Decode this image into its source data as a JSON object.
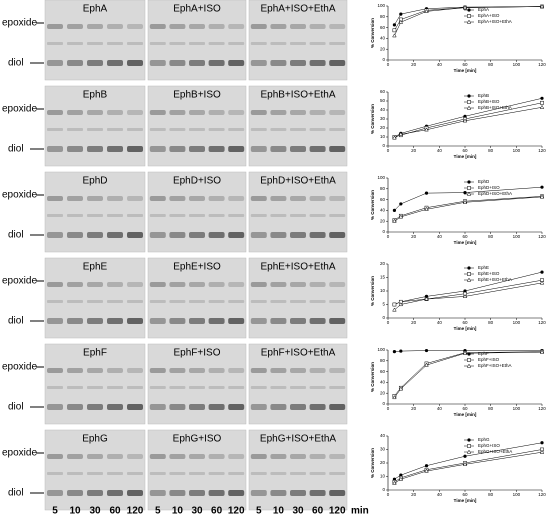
{
  "gels": {
    "rows": [
      {
        "panels": [
          "EphA",
          "EphA+ISO",
          "EphA+ISO+EthA"
        ],
        "side_labels": [
          "epoxide",
          "diol"
        ]
      },
      {
        "panels": [
          "EphB",
          "EphB+ISO",
          "EphB+ISO+EthA"
        ],
        "side_labels": [
          "epoxide",
          "diol"
        ]
      },
      {
        "panels": [
          "EphD",
          "EphD+ISO",
          "EphD+ISO+EthA"
        ],
        "side_labels": [
          "epoxide",
          "diol"
        ]
      },
      {
        "panels": [
          "EphE",
          "EphE+ISO",
          "EphE+ISO+EthA"
        ],
        "side_labels": [
          "epoxide",
          "diol"
        ]
      },
      {
        "panels": [
          "EphF",
          "EphF+ISO",
          "EphF+ISO+EthA"
        ],
        "side_labels": [
          "epoxide",
          "diol"
        ]
      },
      {
        "panels": [
          "EphG",
          "EphG+ISO",
          "EphG+ISO+EthA"
        ],
        "side_labels": [
          "epoxide",
          "diol"
        ]
      }
    ],
    "lanes": [
      "5",
      "10",
      "30",
      "60",
      "120"
    ],
    "lane_unit": "min"
  },
  "chart_data": [
    {
      "type": "line",
      "x_label": "Time [min]",
      "y_label": "% Conversion",
      "x": [
        5,
        10,
        30,
        60,
        120
      ],
      "xlim": [
        0,
        120
      ],
      "xticks": [
        0,
        20,
        40,
        60,
        80,
        100,
        120
      ],
      "ylim": [
        0,
        100
      ],
      "yticks": [
        0,
        20,
        40,
        60,
        80,
        100
      ],
      "series": [
        {
          "name": "EphA",
          "color": "#000000",
          "marker": "circle",
          "values": [
            65,
            85,
            95,
            98,
            99
          ]
        },
        {
          "name": "EphA+ISO",
          "color": "#000000",
          "marker": "square",
          "values": [
            55,
            75,
            92,
            97,
            99
          ]
        },
        {
          "name": "EphA+ISO+EthA",
          "color": "#000000",
          "marker": "triangle",
          "values": [
            45,
            70,
            90,
            97,
            99
          ]
        }
      ]
    },
    {
      "type": "line",
      "x_label": "Time [min]",
      "y_label": "% Conversion",
      "x": [
        5,
        10,
        30,
        60,
        120
      ],
      "xlim": [
        0,
        120
      ],
      "xticks": [
        0,
        20,
        40,
        60,
        80,
        100,
        120
      ],
      "ylim": [
        0,
        60
      ],
      "yticks": [
        0,
        10,
        20,
        30,
        40,
        50,
        60
      ],
      "series": [
        {
          "name": "EphB",
          "color": "#000000",
          "marker": "circle",
          "values": [
            10,
            14,
            22,
            33,
            53
          ]
        },
        {
          "name": "EphB+ISO",
          "color": "#000000",
          "marker": "square",
          "values": [
            10,
            12,
            20,
            30,
            48
          ]
        },
        {
          "name": "EphB+ISO+EthA",
          "color": "#000000",
          "marker": "triangle",
          "values": [
            9,
            13,
            18,
            28,
            43
          ]
        }
      ]
    },
    {
      "type": "line",
      "x_label": "Time [min]",
      "y_label": "% Conversion",
      "x": [
        5,
        10,
        30,
        60,
        120
      ],
      "xlim": [
        0,
        120
      ],
      "xticks": [
        0,
        20,
        40,
        60,
        80,
        100,
        120
      ],
      "ylim": [
        0,
        100
      ],
      "yticks": [
        0,
        20,
        40,
        60,
        80,
        100
      ],
      "series": [
        {
          "name": "EphD",
          "color": "#000000",
          "marker": "circle",
          "values": [
            40,
            52,
            72,
            73,
            83
          ]
        },
        {
          "name": "EphD+ISO",
          "color": "#000000",
          "marker": "square",
          "values": [
            22,
            30,
            45,
            57,
            66
          ]
        },
        {
          "name": "EphD+ISO+EthA",
          "color": "#000000",
          "marker": "triangle",
          "values": [
            20,
            28,
            42,
            55,
            65
          ]
        }
      ]
    },
    {
      "type": "line",
      "x_label": "Time [min]",
      "y_label": "% Conversion",
      "x": [
        5,
        10,
        30,
        60,
        120
      ],
      "xlim": [
        0,
        120
      ],
      "xticks": [
        0,
        20,
        40,
        60,
        80,
        100,
        120
      ],
      "ylim": [
        0,
        20
      ],
      "yticks": [
        0,
        5,
        10,
        15,
        20
      ],
      "series": [
        {
          "name": "EphE",
          "color": "#000000",
          "marker": "circle",
          "values": [
            5,
            6,
            8,
            10,
            17
          ]
        },
        {
          "name": "EphE+ISO",
          "color": "#000000",
          "marker": "square",
          "values": [
            5,
            6,
            7,
            9,
            14
          ]
        },
        {
          "name": "EphE+ISO+EthA",
          "color": "#000000",
          "marker": "triangle",
          "values": [
            3,
            5,
            7,
            8,
            13
          ]
        }
      ]
    },
    {
      "type": "line",
      "x_label": "Time [min]",
      "y_label": "% Conversion",
      "x": [
        5,
        10,
        30,
        60,
        120
      ],
      "xlim": [
        0,
        120
      ],
      "xticks": [
        0,
        20,
        40,
        60,
        80,
        100,
        120
      ],
      "ylim": [
        0,
        100
      ],
      "yticks": [
        0,
        20,
        40,
        60,
        80,
        100
      ],
      "series": [
        {
          "name": "EphF",
          "color": "#000000",
          "marker": "circle",
          "values": [
            97,
            98,
            99,
            99,
            99
          ]
        },
        {
          "name": "EphF+ISO",
          "color": "#000000",
          "marker": "square",
          "values": [
            15,
            30,
            75,
            95,
            97
          ]
        },
        {
          "name": "EphF+ISO+EthA",
          "color": "#000000",
          "marker": "triangle",
          "values": [
            12,
            28,
            72,
            94,
            96
          ]
        }
      ]
    },
    {
      "type": "line",
      "x_label": "Time [min]",
      "y_label": "% Conversion",
      "x": [
        5,
        10,
        30,
        60,
        120
      ],
      "xlim": [
        0,
        120
      ],
      "xticks": [
        0,
        20,
        40,
        60,
        80,
        100,
        120
      ],
      "ylim": [
        0,
        40
      ],
      "yticks": [
        0,
        10,
        20,
        30,
        40
      ],
      "series": [
        {
          "name": "EphG",
          "color": "#000000",
          "marker": "circle",
          "values": [
            8,
            11,
            18,
            25,
            35
          ]
        },
        {
          "name": "EphG+ISO",
          "color": "#000000",
          "marker": "square",
          "values": [
            6,
            9,
            15,
            20,
            30
          ]
        },
        {
          "name": "EphG+ISO+EthA",
          "color": "#000000",
          "marker": "triangle",
          "values": [
            5,
            8,
            14,
            19,
            28
          ]
        }
      ]
    }
  ]
}
